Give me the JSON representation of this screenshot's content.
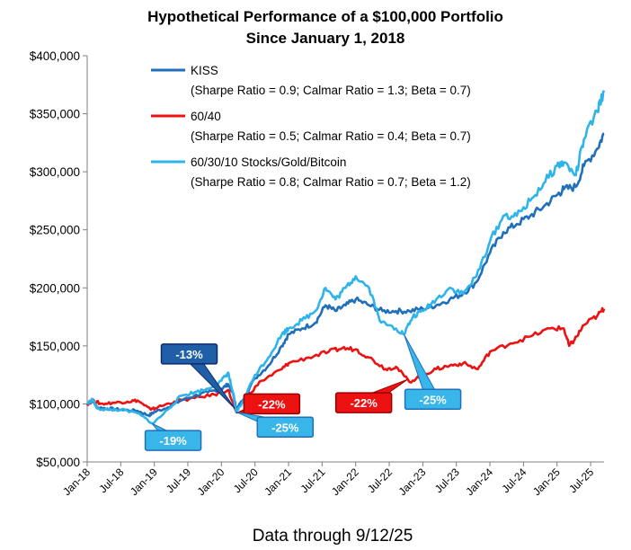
{
  "chart_data": {
    "type": "line",
    "title": "Hypothetical Performance of a $100,000 Portfolio",
    "subtitle": "Since January 1, 2018",
    "footer": "Data through  9/12/25",
    "ylim": [
      50000,
      400000
    ],
    "y_ticks": [
      50000,
      100000,
      150000,
      200000,
      250000,
      300000,
      350000,
      400000
    ],
    "y_tick_labels": [
      "$50,000",
      "$100,000",
      "$150,000",
      "$200,000",
      "$250,000",
      "$300,000",
      "$350,000",
      "$400,000"
    ],
    "x_range": [
      2018.0,
      2025.7
    ],
    "x_ticks": [
      2018.0,
      2018.5,
      2019.0,
      2019.5,
      2020.0,
      2020.5,
      2021.0,
      2021.5,
      2022.0,
      2022.5,
      2023.0,
      2023.5,
      2024.0,
      2024.5,
      2025.0,
      2025.5
    ],
    "x_tick_labels": [
      "Jan-18",
      "Jul-18",
      "Jan-19",
      "Jul-19",
      "Jan-20",
      "Jul-20",
      "Jan-21",
      "Jul-21",
      "Jan-22",
      "Jul-22",
      "Jan-23",
      "Jul-23",
      "Jan-24",
      "Jul-24",
      "Jan-25",
      "Jul-25"
    ],
    "grid": false,
    "legend_position": "top-left",
    "series": [
      {
        "name": "KISS",
        "stats": "(Sharpe Ratio = 0.9; Calmar Ratio = 1.3; Beta = 0.7)",
        "color": "#1f6fba",
        "points": [
          [
            2018.0,
            100000
          ],
          [
            2018.08,
            103000
          ],
          [
            2018.15,
            97000
          ],
          [
            2018.3,
            96000
          ],
          [
            2018.5,
            95000
          ],
          [
            2018.75,
            94000
          ],
          [
            2018.92,
            90000
          ],
          [
            2019.0,
            93000
          ],
          [
            2019.2,
            97000
          ],
          [
            2019.4,
            103000
          ],
          [
            2019.6,
            107000
          ],
          [
            2019.8,
            110000
          ],
          [
            2020.0,
            113000
          ],
          [
            2020.1,
            117000
          ],
          [
            2020.18,
            108000
          ],
          [
            2020.22,
            95000
          ],
          [
            2020.3,
            102000
          ],
          [
            2020.5,
            122000
          ],
          [
            2020.7,
            133000
          ],
          [
            2020.9,
            150000
          ],
          [
            2021.0,
            160000
          ],
          [
            2021.2,
            165000
          ],
          [
            2021.4,
            170000
          ],
          [
            2021.55,
            185000
          ],
          [
            2021.7,
            180000
          ],
          [
            2021.85,
            185000
          ],
          [
            2022.0,
            190000
          ],
          [
            2022.2,
            185000
          ],
          [
            2022.4,
            180000
          ],
          [
            2022.6,
            180000
          ],
          [
            2022.8,
            180000
          ],
          [
            2023.0,
            182000
          ],
          [
            2023.2,
            185000
          ],
          [
            2023.4,
            190000
          ],
          [
            2023.6,
            195000
          ],
          [
            2023.8,
            205000
          ],
          [
            2024.0,
            230000
          ],
          [
            2024.2,
            248000
          ],
          [
            2024.4,
            255000
          ],
          [
            2024.6,
            262000
          ],
          [
            2024.8,
            270000
          ],
          [
            2025.0,
            280000
          ],
          [
            2025.1,
            285000
          ],
          [
            2025.28,
            287000
          ],
          [
            2025.4,
            305000
          ],
          [
            2025.6,
            320000
          ],
          [
            2025.7,
            333000
          ]
        ]
      },
      {
        "name": "60/40",
        "stats": "(Sharpe Ratio = 0.5; Calmar Ratio = 0.4; Beta = 0.7)",
        "color": "#ee1111",
        "points": [
          [
            2018.0,
            100000
          ],
          [
            2018.1,
            103000
          ],
          [
            2018.2,
            100000
          ],
          [
            2018.4,
            101000
          ],
          [
            2018.6,
            102000
          ],
          [
            2018.75,
            103000
          ],
          [
            2018.95,
            95000
          ],
          [
            2019.05,
            97000
          ],
          [
            2019.3,
            102000
          ],
          [
            2019.6,
            105000
          ],
          [
            2019.9,
            108000
          ],
          [
            2020.1,
            112000
          ],
          [
            2020.22,
            93000
          ],
          [
            2020.35,
            105000
          ],
          [
            2020.6,
            120000
          ],
          [
            2020.9,
            130000
          ],
          [
            2021.0,
            135000
          ],
          [
            2021.3,
            140000
          ],
          [
            2021.6,
            145000
          ],
          [
            2021.8,
            148000
          ],
          [
            2022.0,
            147000
          ],
          [
            2022.2,
            140000
          ],
          [
            2022.45,
            130000
          ],
          [
            2022.6,
            132000
          ],
          [
            2022.8,
            119000
          ],
          [
            2023.0,
            125000
          ],
          [
            2023.2,
            130000
          ],
          [
            2023.4,
            133000
          ],
          [
            2023.6,
            135000
          ],
          [
            2023.82,
            130000
          ],
          [
            2024.0,
            145000
          ],
          [
            2024.3,
            152000
          ],
          [
            2024.6,
            158000
          ],
          [
            2024.9,
            165000
          ],
          [
            2025.1,
            165000
          ],
          [
            2025.18,
            150000
          ],
          [
            2025.26,
            155000
          ],
          [
            2025.4,
            168000
          ],
          [
            2025.6,
            176000
          ],
          [
            2025.7,
            182000
          ]
        ]
      },
      {
        "name": "60/30/10 Stocks/Gold/Bitcoin",
        "stats": "(Sharpe Ratio = 0.8; Calmar Ratio = 0.7; Beta = 1.2)",
        "color": "#2fb4ea",
        "points": [
          [
            2018.0,
            100000
          ],
          [
            2018.08,
            104000
          ],
          [
            2018.15,
            96000
          ],
          [
            2018.3,
            95000
          ],
          [
            2018.5,
            95000
          ],
          [
            2018.75,
            92000
          ],
          [
            2018.98,
            83000
          ],
          [
            2019.2,
            95000
          ],
          [
            2019.4,
            107000
          ],
          [
            2019.6,
            110000
          ],
          [
            2019.8,
            113000
          ],
          [
            2020.0,
            120000
          ],
          [
            2020.1,
            127000
          ],
          [
            2020.16,
            112000
          ],
          [
            2020.22,
            93000
          ],
          [
            2020.3,
            100000
          ],
          [
            2020.5,
            125000
          ],
          [
            2020.7,
            140000
          ],
          [
            2020.9,
            160000
          ],
          [
            2021.0,
            165000
          ],
          [
            2021.2,
            172000
          ],
          [
            2021.4,
            180000
          ],
          [
            2021.55,
            200000
          ],
          [
            2021.7,
            190000
          ],
          [
            2021.85,
            200000
          ],
          [
            2022.0,
            210000
          ],
          [
            2022.2,
            200000
          ],
          [
            2022.38,
            170000
          ],
          [
            2022.6,
            165000
          ],
          [
            2022.72,
            160000
          ],
          [
            2022.85,
            175000
          ],
          [
            2023.0,
            180000
          ],
          [
            2023.2,
            190000
          ],
          [
            2023.4,
            200000
          ],
          [
            2023.6,
            195000
          ],
          [
            2023.8,
            210000
          ],
          [
            2024.0,
            240000
          ],
          [
            2024.2,
            262000
          ],
          [
            2024.4,
            262000
          ],
          [
            2024.6,
            275000
          ],
          [
            2024.8,
            290000
          ],
          [
            2025.0,
            305000
          ],
          [
            2025.1,
            308000
          ],
          [
            2025.28,
            297000
          ],
          [
            2025.4,
            328000
          ],
          [
            2025.6,
            352000
          ],
          [
            2025.7,
            370000
          ]
        ]
      }
    ],
    "annotations": [
      {
        "text": "-13%",
        "fill": "#1f5fa8",
        "border": "#0e2c6b",
        "anchor": [
          2020.2,
          96000
        ],
        "box_center": [
          2019.52,
          143000
        ],
        "box_width": 62,
        "box_height": 22
      },
      {
        "text": "-19%",
        "fill": "#38b6ea",
        "border": "#1f6fba",
        "anchor": [
          2018.97,
          83000
        ],
        "box_center": [
          2019.28,
          68500
        ],
        "box_width": 62,
        "box_height": 22
      },
      {
        "text": "-22%",
        "fill": "#ee1111",
        "border": "#9a0000",
        "anchor": [
          2020.22,
          92000
        ],
        "box_center": [
          2020.75,
          100000
        ],
        "box_width": 62,
        "box_height": 22
      },
      {
        "text": "-25%",
        "fill": "#38b6ea",
        "border": "#1f6fba",
        "anchor": [
          2020.22,
          93000
        ],
        "box_center": [
          2020.95,
          80000
        ],
        "box_width": 62,
        "box_height": 22
      },
      {
        "text": "-22%",
        "fill": "#ee1111",
        "border": "#9a0000",
        "anchor": [
          2022.77,
          121000
        ],
        "box_center": [
          2022.12,
          101000
        ],
        "box_width": 62,
        "box_height": 22
      },
      {
        "text": "-25%",
        "fill": "#38b6ea",
        "border": "#1f6fba",
        "anchor": [
          2022.72,
          160000
        ],
        "box_center": [
          2023.15,
          104000
        ],
        "box_width": 62,
        "box_height": 22
      }
    ]
  }
}
